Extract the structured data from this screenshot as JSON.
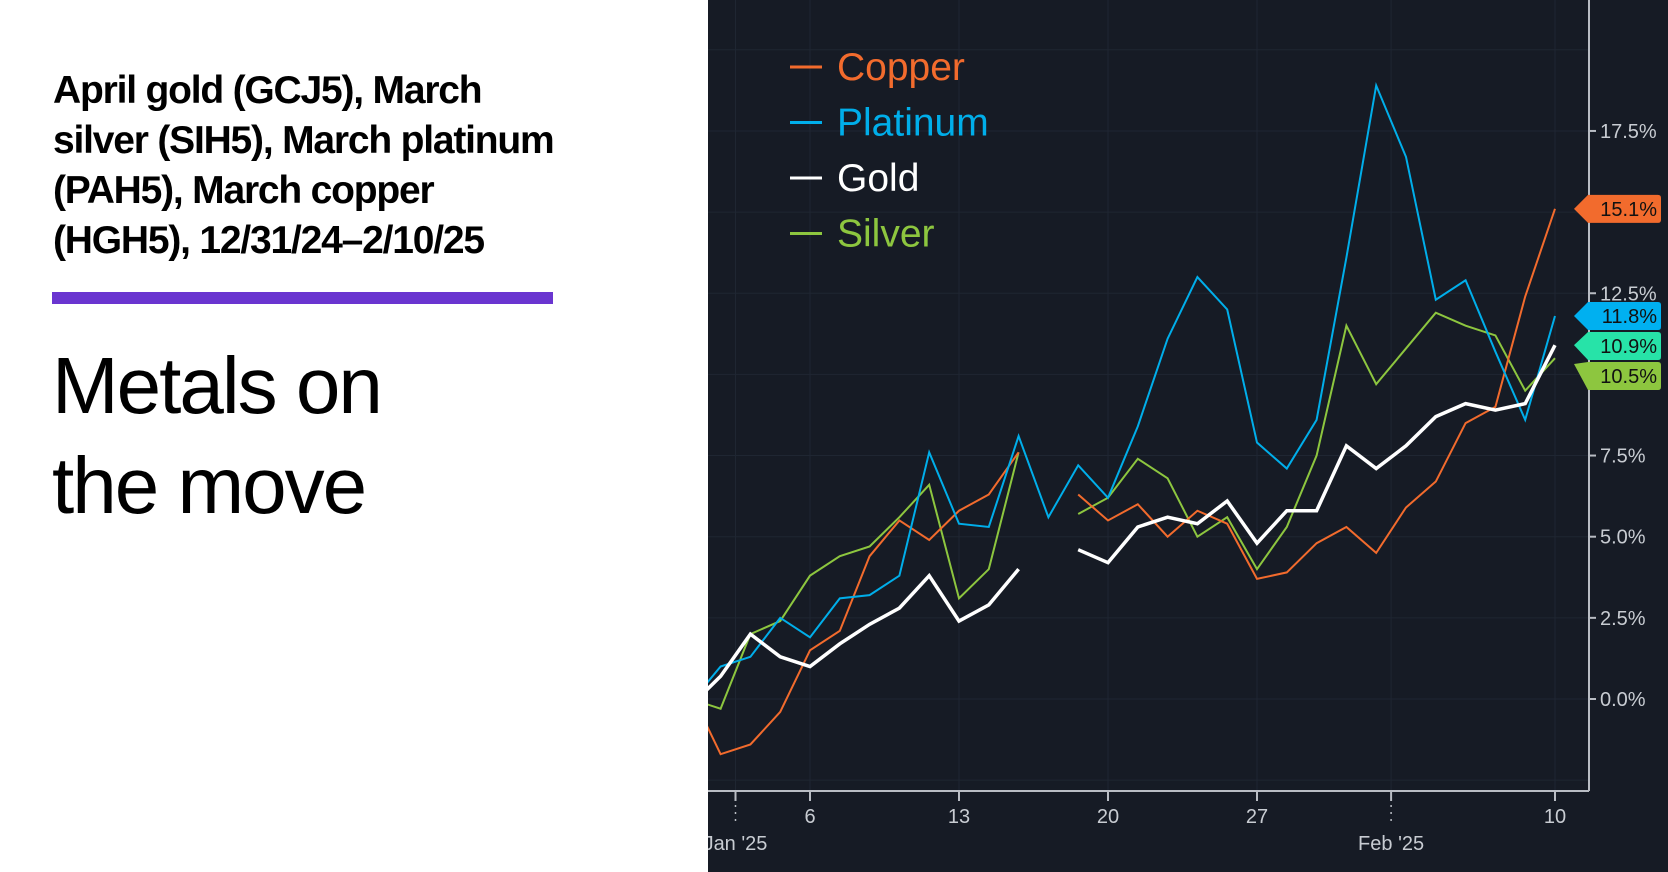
{
  "subtitle_lines": [
    "April gold (GCJ5), March",
    "silver (SIH5), March platinum",
    "(PAH5), March copper",
    "(HGH5), 12/31/24–2/10/25"
  ],
  "headline_lines": [
    "Metals on",
    "the move"
  ],
  "accent_color": "#6a35d0",
  "chart_data": {
    "type": "line",
    "title": "",
    "xlabel": "",
    "ylabel": "",
    "ylim": [
      -2.8,
      21.5
    ],
    "grid": true,
    "legend": "top-left",
    "y_ticks": [
      0,
      2.5,
      5,
      7.5,
      12.5,
      17.5
    ],
    "y_tick_labels": [
      "0.0%",
      "2.5%",
      "5.0%",
      "7.5%",
      "12.5%",
      "17.5%"
    ],
    "x_ticks": [
      {
        "date": "2025-01-01",
        "label": "",
        "month_label": "Jan '25"
      },
      {
        "date": "2025-01-06",
        "label": "6",
        "month_label": ""
      },
      {
        "date": "2025-01-13",
        "label": "13",
        "month_label": ""
      },
      {
        "date": "2025-01-20",
        "label": "20",
        "month_label": ""
      },
      {
        "date": "2025-01-27",
        "label": "27",
        "month_label": ""
      },
      {
        "date": "2025-02-01",
        "label": "",
        "month_label": "Feb '25"
      },
      {
        "date": "2025-02-10",
        "label": "10",
        "month_label": ""
      }
    ],
    "x": [
      "2024-12-30",
      "2024-12-31",
      "2025-01-02",
      "2025-01-03",
      "2025-01-06",
      "2025-01-07",
      "2025-01-08",
      "2025-01-09",
      "2025-01-10",
      "2025-01-13",
      "2025-01-14",
      "2025-01-15",
      "2025-01-16",
      "2025-01-17",
      "2025-01-20",
      "2025-01-21",
      "2025-01-22",
      "2025-01-23",
      "2025-01-24",
      "2025-01-27",
      "2025-01-28",
      "2025-01-29",
      "2025-01-30",
      "2025-01-31",
      "2025-02-03",
      "2025-02-04",
      "2025-02-05",
      "2025-02-06",
      "2025-02-07",
      "2025-02-10"
    ],
    "series": [
      {
        "name": "Silver",
        "color": "#8dc63f",
        "tag_color": "#8dc63f",
        "last_label": "10.5%",
        "width": 2,
        "values": [
          0.0,
          -0.3,
          2.0,
          2.4,
          3.8,
          4.4,
          4.7,
          5.6,
          6.6,
          3.1,
          4.0,
          7.6,
          null,
          5.7,
          6.2,
          7.4,
          6.8,
          5.0,
          5.6,
          4.0,
          5.3,
          7.5,
          11.5,
          9.7,
          10.8,
          11.9,
          11.5,
          11.2,
          9.5,
          10.5
        ]
      },
      {
        "name": "Copper",
        "color": "#f26b2d",
        "tag_color": "#f26b2d",
        "last_label": "15.1%",
        "width": 2,
        "values": [
          0.2,
          -1.7,
          -1.4,
          -0.4,
          1.5,
          2.1,
          4.4,
          5.5,
          4.9,
          5.8,
          6.3,
          7.6,
          null,
          6.3,
          5.5,
          6.0,
          5.0,
          5.8,
          5.4,
          3.7,
          3.9,
          4.8,
          5.3,
          4.5,
          5.9,
          6.7,
          8.5,
          9.0,
          12.4,
          15.1
        ]
      },
      {
        "name": "Platinum",
        "color": "#00aeea",
        "tag_color": "#00b0f0",
        "last_label": "11.8%",
        "width": 2,
        "values": [
          -0.1,
          1.0,
          1.3,
          2.5,
          1.9,
          3.1,
          3.2,
          3.8,
          7.6,
          5.4,
          5.3,
          8.1,
          5.6,
          7.2,
          6.2,
          8.4,
          11.1,
          13.0,
          12.0,
          7.9,
          7.1,
          8.6,
          13.6,
          18.9,
          16.7,
          12.3,
          12.9,
          10.7,
          8.6,
          11.8
        ]
      },
      {
        "name": "Gold",
        "color": "#ffffff",
        "tag_color": "#27e3a8",
        "last_label": "10.9%",
        "width": 3.5,
        "values": [
          -0.2,
          0.7,
          2.0,
          1.3,
          1.0,
          1.7,
          2.3,
          2.8,
          3.8,
          2.4,
          2.9,
          4.0,
          null,
          4.6,
          4.2,
          5.3,
          5.6,
          5.4,
          6.1,
          4.8,
          5.8,
          5.8,
          7.8,
          7.1,
          7.8,
          8.7,
          9.1,
          8.9,
          9.1,
          10.9
        ]
      }
    ],
    "legend_order": [
      "Copper",
      "Platinum",
      "Gold",
      "Silver"
    ]
  }
}
